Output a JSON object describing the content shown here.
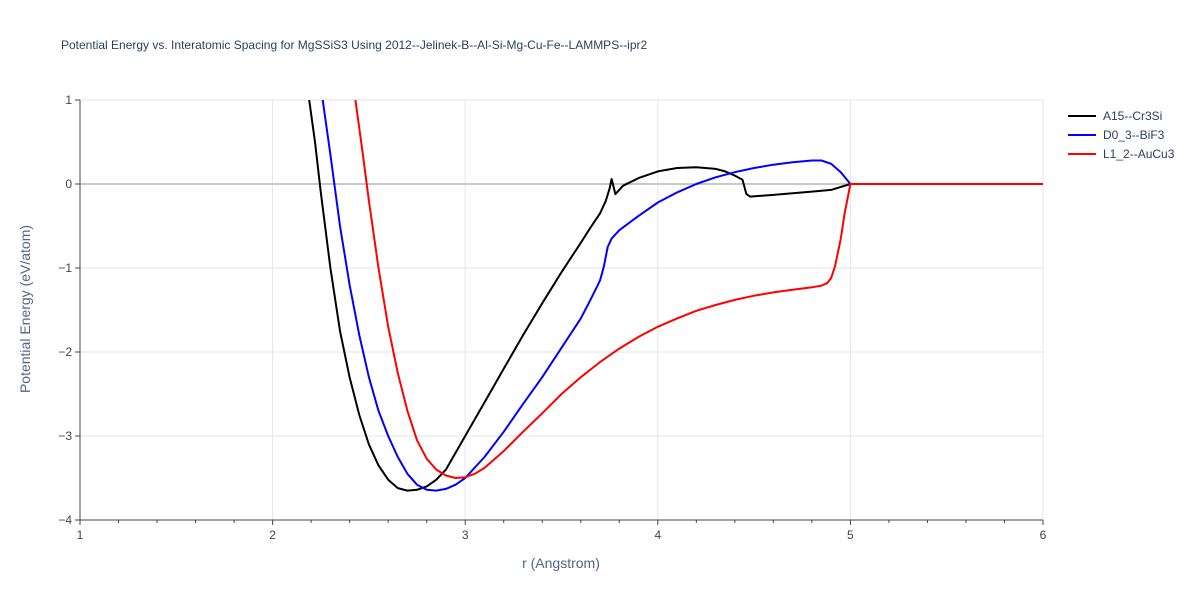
{
  "chart_data": {
    "type": "line",
    "title": "Potential Energy vs. Interatomic Spacing for MgSSiS3 Using 2012--Jelinek-B--Al-Si-Mg-Cu-Fe--LAMMPS--ipr2",
    "xlabel": "r (Angstrom)",
    "ylabel": "Potential Energy (eV/atom)",
    "xlim": [
      1,
      6
    ],
    "ylim": [
      -4,
      1
    ],
    "xticks": [
      1,
      2,
      3,
      4,
      5,
      6
    ],
    "yticks": [
      -4,
      -3,
      -2,
      -1,
      0,
      1
    ],
    "x_tick_labels": [
      "1",
      "2",
      "3",
      "4",
      "5",
      "6"
    ],
    "y_tick_labels": [
      "−4",
      "−3",
      "−2",
      "−1",
      "0",
      "1"
    ],
    "grid": true,
    "legend_position": "top-right",
    "series": [
      {
        "name": "A15--Cr3Si",
        "color": "#000000",
        "points": [
          [
            2.19,
            1.0
          ],
          [
            2.22,
            0.5
          ],
          [
            2.25,
            -0.1
          ],
          [
            2.3,
            -1.0
          ],
          [
            2.35,
            -1.75
          ],
          [
            2.4,
            -2.3
          ],
          [
            2.45,
            -2.75
          ],
          [
            2.5,
            -3.1
          ],
          [
            2.55,
            -3.35
          ],
          [
            2.6,
            -3.52
          ],
          [
            2.65,
            -3.62
          ],
          [
            2.7,
            -3.65
          ],
          [
            2.75,
            -3.64
          ],
          [
            2.8,
            -3.6
          ],
          [
            2.85,
            -3.52
          ],
          [
            2.9,
            -3.4
          ],
          [
            3.0,
            -3.0
          ],
          [
            3.1,
            -2.6
          ],
          [
            3.2,
            -2.2
          ],
          [
            3.3,
            -1.8
          ],
          [
            3.4,
            -1.42
          ],
          [
            3.5,
            -1.05
          ],
          [
            3.6,
            -0.7
          ],
          [
            3.65,
            -0.52
          ],
          [
            3.7,
            -0.35
          ],
          [
            3.73,
            -0.2
          ],
          [
            3.75,
            -0.05
          ],
          [
            3.76,
            0.06
          ],
          [
            3.78,
            -0.12
          ],
          [
            3.82,
            -0.02
          ],
          [
            3.9,
            0.07
          ],
          [
            4.0,
            0.15
          ],
          [
            4.1,
            0.19
          ],
          [
            4.2,
            0.2
          ],
          [
            4.3,
            0.18
          ],
          [
            4.35,
            0.15
          ],
          [
            4.4,
            0.1
          ],
          [
            4.44,
            0.05
          ],
          [
            4.46,
            -0.12
          ],
          [
            4.48,
            -0.15
          ],
          [
            4.6,
            -0.13
          ],
          [
            4.7,
            -0.11
          ],
          [
            4.8,
            -0.09
          ],
          [
            4.9,
            -0.07
          ],
          [
            5.0,
            0.0
          ],
          [
            6.0,
            0.0
          ]
        ]
      },
      {
        "name": "D0_3--BiF3",
        "color": "#0000ff",
        "points": [
          [
            2.26,
            1.0
          ],
          [
            2.3,
            0.35
          ],
          [
            2.35,
            -0.5
          ],
          [
            2.4,
            -1.2
          ],
          [
            2.45,
            -1.8
          ],
          [
            2.5,
            -2.3
          ],
          [
            2.55,
            -2.7
          ],
          [
            2.6,
            -3.0
          ],
          [
            2.65,
            -3.25
          ],
          [
            2.7,
            -3.45
          ],
          [
            2.75,
            -3.58
          ],
          [
            2.8,
            -3.64
          ],
          [
            2.85,
            -3.65
          ],
          [
            2.9,
            -3.63
          ],
          [
            2.95,
            -3.58
          ],
          [
            3.0,
            -3.5
          ],
          [
            3.1,
            -3.25
          ],
          [
            3.2,
            -2.95
          ],
          [
            3.3,
            -2.62
          ],
          [
            3.4,
            -2.3
          ],
          [
            3.5,
            -1.95
          ],
          [
            3.6,
            -1.6
          ],
          [
            3.65,
            -1.38
          ],
          [
            3.7,
            -1.15
          ],
          [
            3.72,
            -0.98
          ],
          [
            3.74,
            -0.75
          ],
          [
            3.76,
            -0.65
          ],
          [
            3.8,
            -0.55
          ],
          [
            3.9,
            -0.38
          ],
          [
            4.0,
            -0.22
          ],
          [
            4.1,
            -0.1
          ],
          [
            4.2,
            0.0
          ],
          [
            4.3,
            0.08
          ],
          [
            4.4,
            0.14
          ],
          [
            4.5,
            0.19
          ],
          [
            4.6,
            0.23
          ],
          [
            4.7,
            0.26
          ],
          [
            4.8,
            0.28
          ],
          [
            4.85,
            0.28
          ],
          [
            4.9,
            0.24
          ],
          [
            4.95,
            0.14
          ],
          [
            5.0,
            0.0
          ],
          [
            6.0,
            0.0
          ]
        ]
      },
      {
        "name": "L1_2--AuCu3",
        "color": "#ff0000",
        "points": [
          [
            2.43,
            1.0
          ],
          [
            2.46,
            0.5
          ],
          [
            2.5,
            -0.2
          ],
          [
            2.55,
            -1.0
          ],
          [
            2.6,
            -1.7
          ],
          [
            2.65,
            -2.25
          ],
          [
            2.7,
            -2.7
          ],
          [
            2.75,
            -3.05
          ],
          [
            2.8,
            -3.27
          ],
          [
            2.85,
            -3.4
          ],
          [
            2.9,
            -3.47
          ],
          [
            2.95,
            -3.5
          ],
          [
            3.0,
            -3.49
          ],
          [
            3.05,
            -3.45
          ],
          [
            3.1,
            -3.38
          ],
          [
            3.2,
            -3.18
          ],
          [
            3.3,
            -2.95
          ],
          [
            3.4,
            -2.73
          ],
          [
            3.5,
            -2.5
          ],
          [
            3.6,
            -2.3
          ],
          [
            3.7,
            -2.12
          ],
          [
            3.8,
            -1.96
          ],
          [
            3.9,
            -1.82
          ],
          [
            4.0,
            -1.7
          ],
          [
            4.1,
            -1.6
          ],
          [
            4.2,
            -1.51
          ],
          [
            4.3,
            -1.44
          ],
          [
            4.4,
            -1.38
          ],
          [
            4.5,
            -1.33
          ],
          [
            4.6,
            -1.29
          ],
          [
            4.7,
            -1.26
          ],
          [
            4.8,
            -1.23
          ],
          [
            4.85,
            -1.21
          ],
          [
            4.88,
            -1.18
          ],
          [
            4.9,
            -1.12
          ],
          [
            4.92,
            -0.98
          ],
          [
            4.95,
            -0.65
          ],
          [
            4.97,
            -0.35
          ],
          [
            5.0,
            0.0
          ],
          [
            6.0,
            0.0
          ]
        ]
      }
    ]
  }
}
